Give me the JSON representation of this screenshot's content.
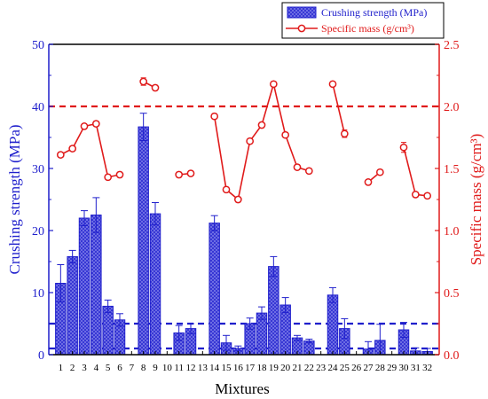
{
  "colors": {
    "bar_fill": "#8080e0",
    "bar_stroke": "#1f1fcc",
    "left_axis": "#1f1fcc",
    "right_axis": "#e01b1b",
    "line": "#e01b1b",
    "blue_dash": "#1f1fcc",
    "red_dash": "#e01b1b",
    "axis_black": "#000000"
  },
  "chart_data": {
    "type": "bar",
    "xlabel": "Mixtures",
    "ylabel_left": "Crushing strength (MPa)",
    "ylabel_right": "Specific mass (g/cm³)",
    "legend": {
      "position": "top-right",
      "entries": [
        "Crushing strength (MPa)",
        "Specific mass (g/cm³)"
      ]
    },
    "categories": [
      "1",
      "2",
      "3",
      "4",
      "5",
      "6",
      "7",
      "8",
      "9",
      "10",
      "11",
      "12",
      "13",
      "14",
      "15",
      "16",
      "17",
      "18",
      "19",
      "20",
      "21",
      "22",
      "23",
      "24",
      "25",
      "26",
      "27",
      "28",
      "29",
      "30",
      "31",
      "32"
    ],
    "ylim_left": [
      0,
      50
    ],
    "yticks_left": [
      "0",
      "10",
      "20",
      "30",
      "40",
      "50"
    ],
    "ylim_right": [
      0,
      2.5
    ],
    "yticks_right": [
      "0.0",
      "0.5",
      "1.0",
      "1.5",
      "2.0",
      "2.5"
    ],
    "series": [
      {
        "name": "Crushing strength (MPa)",
        "type": "bar",
        "axis": "left",
        "values": [
          11.5,
          15.8,
          22.0,
          22.5,
          7.8,
          5.6,
          null,
          36.7,
          22.7,
          null,
          3.5,
          4.2,
          null,
          21.2,
          1.9,
          1.0,
          5.0,
          6.7,
          14.2,
          8.0,
          2.7,
          2.2,
          null,
          9.6,
          4.2,
          null,
          0.9,
          2.3,
          null,
          4.0,
          0.6,
          0.5
        ],
        "errors": [
          3.0,
          1.0,
          1.2,
          2.8,
          1.0,
          1.0,
          null,
          2.2,
          1.8,
          null,
          1.2,
          0.8,
          null,
          1.2,
          1.2,
          0.4,
          0.9,
          1.0,
          1.6,
          1.2,
          0.4,
          0.3,
          null,
          1.2,
          1.6,
          null,
          1.2,
          2.6,
          null,
          1.2,
          0.5,
          0.5
        ]
      },
      {
        "name": "Specific mass (g/cm³)",
        "type": "line",
        "axis": "right",
        "values": [
          1.61,
          1.66,
          1.84,
          1.86,
          1.43,
          1.45,
          null,
          2.2,
          2.15,
          null,
          1.45,
          1.46,
          null,
          1.92,
          1.33,
          1.25,
          1.72,
          1.85,
          2.18,
          1.77,
          1.51,
          1.48,
          null,
          2.18,
          1.78,
          null,
          1.39,
          1.47,
          null,
          1.67,
          1.29,
          1.28
        ],
        "errors": [
          0.02,
          0.02,
          0.02,
          0.02,
          0.02,
          0.02,
          null,
          0.03,
          0.02,
          null,
          0.02,
          0.02,
          null,
          0.02,
          0.02,
          0.02,
          0.02,
          0.02,
          0.02,
          0.02,
          0.02,
          0.02,
          null,
          0.02,
          0.03,
          null,
          0.02,
          0.02,
          null,
          0.04,
          0.02,
          0.02
        ]
      }
    ],
    "reference_lines": [
      {
        "axis": "right",
        "value": 2.0,
        "color": "red",
        "style": "dashed"
      },
      {
        "axis": "left",
        "value": 5,
        "color": "blue",
        "style": "dashed"
      },
      {
        "axis": "left",
        "value": 1,
        "color": "blue",
        "style": "dashed"
      }
    ]
  }
}
